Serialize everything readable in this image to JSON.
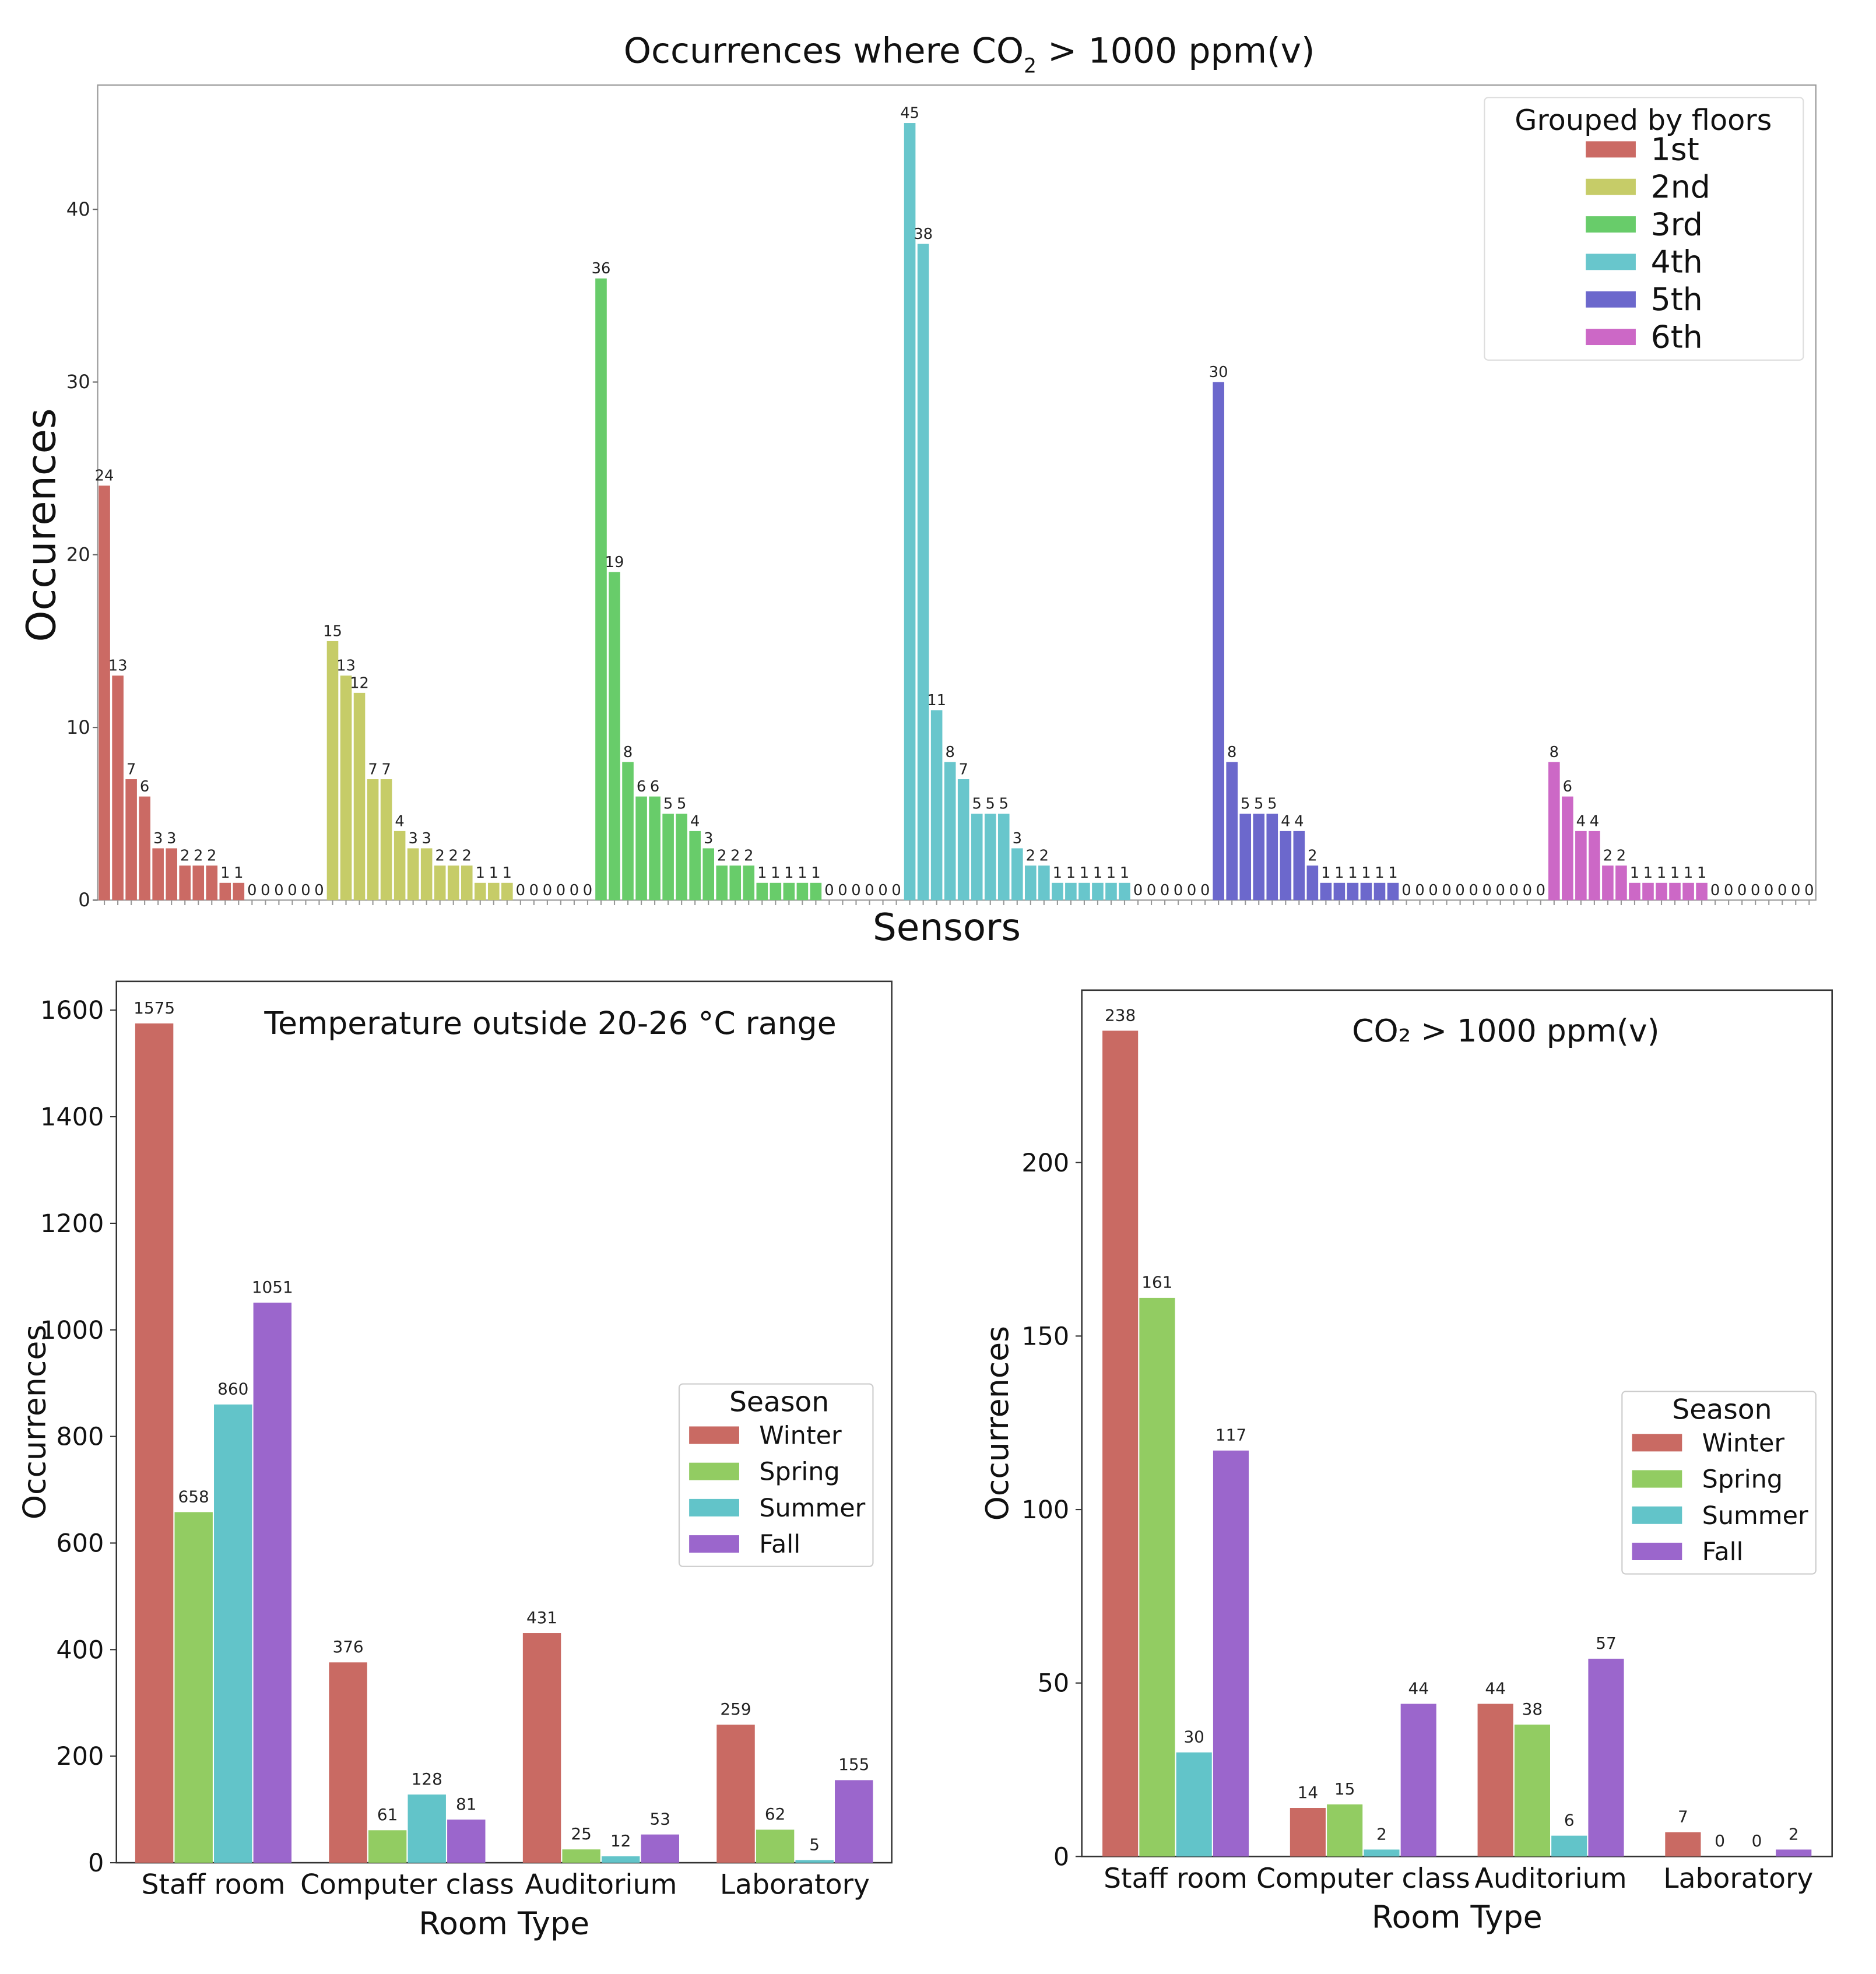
{
  "chart_data": [
    {
      "type": "bar",
      "title": "Occurrences where CO₂ > 1000 ppm(v)",
      "title_main": "Occurrences where CO",
      "title_sub": "2",
      "title_rest": " > 1000 ppm(v)",
      "xlabel": "Sensors",
      "ylabel": "Occurences",
      "ylim": [
        0,
        47.2
      ],
      "yticks": [
        0,
        10,
        20,
        30,
        40
      ],
      "legend": {
        "title": "Grouped by floors",
        "placement": "top-right"
      },
      "series": [
        {
          "name": "1st",
          "color": "#cb6a64",
          "values": [
            24,
            13,
            7,
            6,
            3,
            3,
            2,
            2,
            2,
            1,
            1,
            0,
            0,
            0,
            0,
            0,
            0
          ]
        },
        {
          "name": "2nd",
          "color": "#c6cc68",
          "values": [
            15,
            13,
            12,
            7,
            7,
            4,
            3,
            3,
            2,
            2,
            2,
            1,
            1,
            1,
            0,
            0,
            0,
            0,
            0,
            0
          ]
        },
        {
          "name": "3rd",
          "color": "#68cc6a",
          "values": [
            36,
            19,
            8,
            6,
            6,
            5,
            5,
            4,
            3,
            2,
            2,
            2,
            1,
            1,
            1,
            1,
            1,
            0,
            0,
            0,
            0,
            0,
            0
          ]
        },
        {
          "name": "4th",
          "color": "#68c6cc",
          "values": [
            45,
            38,
            11,
            8,
            7,
            5,
            5,
            5,
            3,
            2,
            2,
            1,
            1,
            1,
            1,
            1,
            1,
            0,
            0,
            0,
            0,
            0,
            0
          ]
        },
        {
          "name": "5th",
          "color": "#6c68cc",
          "values": [
            30,
            8,
            5,
            5,
            5,
            4,
            4,
            2,
            1,
            1,
            1,
            1,
            1,
            1,
            0,
            0,
            0,
            0,
            0,
            0,
            0,
            0,
            0,
            0,
            0
          ]
        },
        {
          "name": "6th",
          "color": "#cc68c6",
          "values": [
            8,
            6,
            4,
            4,
            2,
            2,
            1,
            1,
            1,
            1,
            1,
            1,
            0,
            0,
            0,
            0,
            0,
            0,
            0,
            0
          ]
        }
      ]
    },
    {
      "type": "bar",
      "title": "Temperature  outside 20-26 °C range",
      "xlabel": "Room Type",
      "ylabel": "Occurrences",
      "ylim": [
        0,
        1654
      ],
      "yticks": [
        0,
        200,
        400,
        600,
        800,
        1000,
        1200,
        1400,
        1600
      ],
      "categories": [
        "Staff room",
        "Computer class",
        "Auditorium",
        "Laboratory"
      ],
      "legend": {
        "title": "Season",
        "placement": "center-right"
      },
      "series": [
        {
          "name": "Winter",
          "color": "#c96a63",
          "values": [
            1575,
            376,
            431,
            259
          ]
        },
        {
          "name": "Spring",
          "color": "#92cc62",
          "values": [
            658,
            61,
            25,
            62
          ]
        },
        {
          "name": "Summer",
          "color": "#62c4c9",
          "values": [
            860,
            128,
            12,
            5
          ]
        },
        {
          "name": "Fall",
          "color": "#9b66cc",
          "values": [
            1051,
            81,
            53,
            155
          ]
        }
      ]
    },
    {
      "type": "bar",
      "title": "CO₂ > 1000 ppm(v)",
      "xlabel": "Room Type",
      "ylabel": "Occurrences",
      "ylim": [
        0,
        249.7
      ],
      "yticks": [
        0,
        50,
        100,
        150,
        200
      ],
      "categories": [
        "Staff room",
        "Computer class",
        "Auditorium",
        "Laboratory"
      ],
      "legend": {
        "title": "Season",
        "placement": "center-right"
      },
      "series": [
        {
          "name": "Winter",
          "color": "#c96a63",
          "values": [
            238,
            14,
            44,
            7
          ]
        },
        {
          "name": "Spring",
          "color": "#92cc62",
          "values": [
            161,
            15,
            38,
            0
          ]
        },
        {
          "name": "Summer",
          "color": "#62c4c9",
          "values": [
            30,
            2,
            6,
            0
          ]
        },
        {
          "name": "Fall",
          "color": "#9b66cc",
          "values": [
            117,
            44,
            57,
            2
          ]
        }
      ]
    }
  ]
}
